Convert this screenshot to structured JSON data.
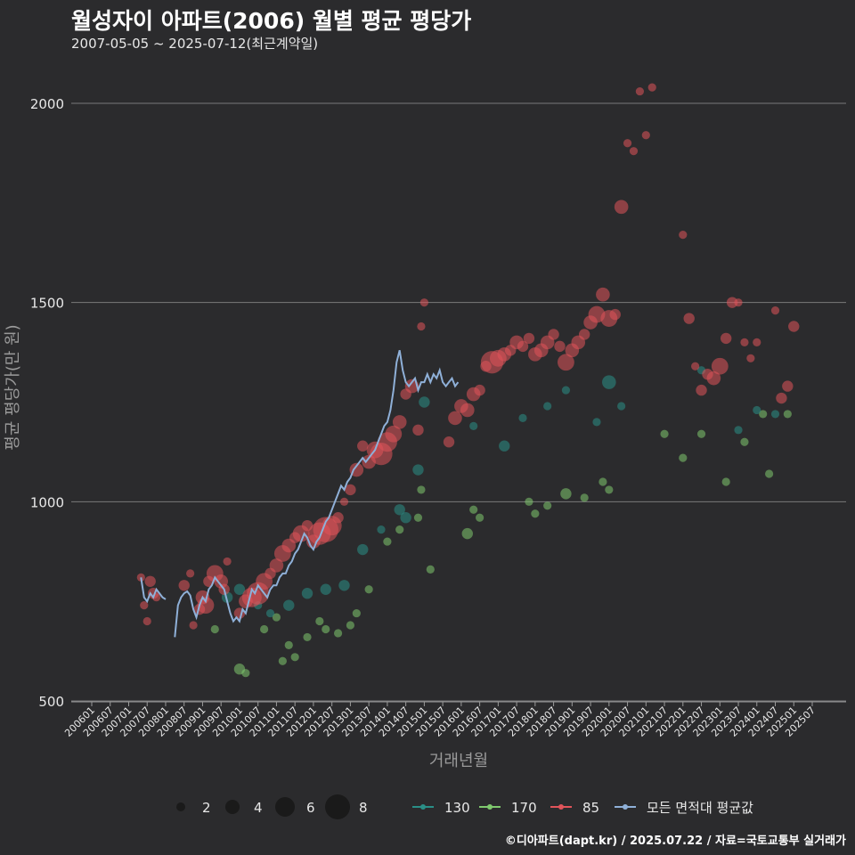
{
  "header": {
    "title": "월성자이 아파트(2006) 월별 평균 평당가",
    "subtitle": "2007-05-05 ~ 2025-07-12(최근계약일)"
  },
  "footer": {
    "credit": "©디아파트(dapt.kr) / 2025.07.22 / 자료=국토교통부 실거래가"
  },
  "colors": {
    "bg": "#2b2b2d",
    "grid": "#7a7a7a",
    "s130": "#2a8f87",
    "s170": "#7fc96e",
    "s85": "#e0545a",
    "avg": "#8fb0d8",
    "text": "#e8e8e8"
  },
  "chart_data": {
    "type": "scatter",
    "xlabel": "거래년월",
    "ylabel": "평균 평당가(만 원)",
    "yticks": [
      500,
      1000,
      1500,
      2000
    ],
    "ylim": [
      500,
      2100
    ],
    "xlim": [
      "2006-01",
      "2025-07"
    ],
    "xticks": [
      "200601",
      "200607",
      "200701",
      "200707",
      "200801",
      "200807",
      "200901",
      "200907",
      "201001",
      "201007",
      "201101",
      "201107",
      "201201",
      "201207",
      "201301",
      "201307",
      "201401",
      "201407",
      "201501",
      "201507",
      "201601",
      "201607",
      "201701",
      "201707",
      "201801",
      "201807",
      "201901",
      "201907",
      "202001",
      "202007",
      "202101",
      "202107",
      "202201",
      "202207",
      "202301",
      "202307",
      "202401",
      "202407",
      "202501",
      "202507"
    ],
    "size_legend": {
      "values": [
        2,
        4,
        6,
        8
      ],
      "labels": [
        "2",
        "4",
        "6",
        "8"
      ]
    },
    "legend": [
      {
        "key": "s130",
        "label": "130"
      },
      {
        "key": "s170",
        "label": "170"
      },
      {
        "key": "s85",
        "label": "85"
      },
      {
        "key": "avg",
        "label": "모든 면적대 평균값"
      }
    ],
    "series_85": [
      [
        "2007-05",
        810,
        1
      ],
      [
        "2007-06",
        740,
        1
      ],
      [
        "2007-07",
        700,
        1
      ],
      [
        "2007-08",
        800,
        2
      ],
      [
        "2007-09",
        770,
        2
      ],
      [
        "2007-10",
        760,
        1
      ],
      [
        "2008-07",
        790,
        2
      ],
      [
        "2008-09",
        820,
        1
      ],
      [
        "2008-10",
        690,
        1
      ],
      [
        "2008-12",
        730,
        2
      ],
      [
        "2009-01",
        760,
        3
      ],
      [
        "2009-02",
        740,
        4
      ],
      [
        "2009-03",
        800,
        2
      ],
      [
        "2009-05",
        820,
        4
      ],
      [
        "2009-07",
        800,
        3
      ],
      [
        "2009-08",
        780,
        2
      ],
      [
        "2009-09",
        850,
        1
      ],
      [
        "2010-01",
        720,
        2
      ],
      [
        "2010-03",
        750,
        3
      ],
      [
        "2010-05",
        760,
        5
      ],
      [
        "2010-07",
        770,
        6
      ],
      [
        "2010-09",
        800,
        4
      ],
      [
        "2010-11",
        820,
        2
      ],
      [
        "2011-01",
        840,
        3
      ],
      [
        "2011-03",
        870,
        4
      ],
      [
        "2011-05",
        890,
        3
      ],
      [
        "2011-07",
        910,
        2
      ],
      [
        "2011-09",
        920,
        4
      ],
      [
        "2011-11",
        940,
        2
      ],
      [
        "2012-01",
        900,
        3
      ],
      [
        "2012-03",
        920,
        6
      ],
      [
        "2012-05",
        930,
        7
      ],
      [
        "2012-07",
        940,
        5
      ],
      [
        "2012-09",
        960,
        2
      ],
      [
        "2012-11",
        1000,
        1
      ],
      [
        "2013-01",
        1030,
        2
      ],
      [
        "2013-03",
        1080,
        3
      ],
      [
        "2013-05",
        1140,
        2
      ],
      [
        "2013-07",
        1100,
        3
      ],
      [
        "2013-09",
        1130,
        4
      ],
      [
        "2013-11",
        1120,
        6
      ],
      [
        "2014-01",
        1150,
        5
      ],
      [
        "2014-03",
        1170,
        4
      ],
      [
        "2014-05",
        1200,
        3
      ],
      [
        "2014-07",
        1270,
        2
      ],
      [
        "2014-09",
        1290,
        3
      ],
      [
        "2014-11",
        1180,
        2
      ],
      [
        "2014-12",
        1440,
        1
      ],
      [
        "2015-01",
        1500,
        1
      ],
      [
        "2015-09",
        1150,
        2
      ],
      [
        "2015-11",
        1210,
        3
      ],
      [
        "2016-01",
        1240,
        3
      ],
      [
        "2016-03",
        1230,
        3
      ],
      [
        "2016-05",
        1270,
        3
      ],
      [
        "2016-07",
        1280,
        2
      ],
      [
        "2016-09",
        1340,
        2
      ],
      [
        "2016-11",
        1350,
        6
      ],
      [
        "2017-01",
        1360,
        4
      ],
      [
        "2017-03",
        1370,
        3
      ],
      [
        "2017-05",
        1380,
        2
      ],
      [
        "2017-07",
        1400,
        3
      ],
      [
        "2017-09",
        1390,
        2
      ],
      [
        "2017-11",
        1410,
        2
      ],
      [
        "2018-01",
        1370,
        3
      ],
      [
        "2018-03",
        1380,
        3
      ],
      [
        "2018-05",
        1400,
        3
      ],
      [
        "2018-07",
        1420,
        2
      ],
      [
        "2018-09",
        1390,
        2
      ],
      [
        "2018-11",
        1350,
        4
      ],
      [
        "2019-01",
        1380,
        3
      ],
      [
        "2019-03",
        1400,
        3
      ],
      [
        "2019-05",
        1420,
        2
      ],
      [
        "2019-07",
        1450,
        3
      ],
      [
        "2019-09",
        1470,
        4
      ],
      [
        "2019-11",
        1520,
        3
      ],
      [
        "2020-01",
        1460,
        4
      ],
      [
        "2020-03",
        1470,
        2
      ],
      [
        "2020-05",
        1740,
        3
      ],
      [
        "2020-07",
        1900,
        1
      ],
      [
        "2020-09",
        1880,
        1
      ],
      [
        "2020-11",
        2030,
        1
      ],
      [
        "2021-01",
        1920,
        1
      ],
      [
        "2021-03",
        2040,
        1
      ],
      [
        "2022-01",
        1670,
        1
      ],
      [
        "2022-03",
        1460,
        2
      ],
      [
        "2022-05",
        1340,
        1
      ],
      [
        "2022-07",
        1280,
        2
      ],
      [
        "2022-09",
        1320,
        2
      ],
      [
        "2022-11",
        1310,
        3
      ],
      [
        "2023-01",
        1340,
        4
      ],
      [
        "2023-03",
        1410,
        2
      ],
      [
        "2023-05",
        1500,
        2
      ],
      [
        "2023-07",
        1500,
        1
      ],
      [
        "2023-09",
        1400,
        1
      ],
      [
        "2023-11",
        1360,
        1
      ],
      [
        "2024-01",
        1400,
        1
      ],
      [
        "2024-07",
        1480,
        1
      ],
      [
        "2024-09",
        1260,
        2
      ],
      [
        "2024-11",
        1290,
        2
      ],
      [
        "2025-01",
        1440,
        2
      ]
    ],
    "series_130": [
      [
        "2009-09",
        760,
        2
      ],
      [
        "2010-01",
        780,
        2
      ],
      [
        "2010-07",
        740,
        1
      ],
      [
        "2010-11",
        720,
        1
      ],
      [
        "2011-05",
        740,
        2
      ],
      [
        "2011-11",
        770,
        2
      ],
      [
        "2012-05",
        780,
        2
      ],
      [
        "2012-11",
        790,
        2
      ],
      [
        "2013-05",
        880,
        2
      ],
      [
        "2013-11",
        930,
        1
      ],
      [
        "2014-05",
        980,
        2
      ],
      [
        "2014-07",
        960,
        2
      ],
      [
        "2014-11",
        1080,
        2
      ],
      [
        "2015-01",
        1250,
        2
      ],
      [
        "2016-05",
        1190,
        1
      ],
      [
        "2017-03",
        1140,
        2
      ],
      [
        "2017-09",
        1210,
        1
      ],
      [
        "2018-05",
        1240,
        1
      ],
      [
        "2018-11",
        1280,
        1
      ],
      [
        "2019-09",
        1200,
        1
      ],
      [
        "2020-01",
        1300,
        3
      ],
      [
        "2020-05",
        1240,
        1
      ],
      [
        "2022-07",
        1330,
        1
      ],
      [
        "2023-07",
        1180,
        1
      ],
      [
        "2024-01",
        1230,
        1
      ],
      [
        "2024-07",
        1220,
        1
      ]
    ],
    "series_170": [
      [
        "2009-05",
        680,
        1
      ],
      [
        "2010-01",
        580,
        2
      ],
      [
        "2010-03",
        570,
        1
      ],
      [
        "2010-09",
        680,
        1
      ],
      [
        "2011-01",
        710,
        1
      ],
      [
        "2011-03",
        600,
        1
      ],
      [
        "2011-05",
        640,
        1
      ],
      [
        "2011-07",
        610,
        1
      ],
      [
        "2011-11",
        660,
        1
      ],
      [
        "2012-03",
        700,
        1
      ],
      [
        "2012-05",
        680,
        1
      ],
      [
        "2012-09",
        670,
        1
      ],
      [
        "2013-01",
        690,
        1
      ],
      [
        "2013-03",
        720,
        1
      ],
      [
        "2013-07",
        780,
        1
      ],
      [
        "2014-01",
        900,
        1
      ],
      [
        "2014-05",
        930,
        1
      ],
      [
        "2014-11",
        960,
        1
      ],
      [
        "2014-12",
        1030,
        1
      ],
      [
        "2015-03",
        830,
        1
      ],
      [
        "2016-03",
        920,
        2
      ],
      [
        "2016-05",
        980,
        1
      ],
      [
        "2016-07",
        960,
        1
      ],
      [
        "2017-11",
        1000,
        1
      ],
      [
        "2018-01",
        970,
        1
      ],
      [
        "2018-05",
        990,
        1
      ],
      [
        "2018-11",
        1020,
        2
      ],
      [
        "2019-05",
        1010,
        1
      ],
      [
        "2019-11",
        1050,
        1
      ],
      [
        "2020-01",
        1030,
        1
      ],
      [
        "2021-07",
        1170,
        1
      ],
      [
        "2022-01",
        1110,
        1
      ],
      [
        "2022-07",
        1170,
        1
      ],
      [
        "2023-03",
        1050,
        1
      ],
      [
        "2023-09",
        1150,
        1
      ],
      [
        "2024-03",
        1220,
        1
      ],
      [
        "2024-11",
        1220,
        1
      ],
      [
        "2024-05",
        1070,
        1
      ]
    ],
    "series_avg": [
      [
        "2007-05",
        810
      ],
      [
        "2007-06",
        760
      ],
      [
        "2007-07",
        750
      ],
      [
        "2007-08",
        770
      ],
      [
        "2007-09",
        760
      ],
      [
        "2007-10",
        780
      ],
      [
        "2007-11",
        770
      ],
      [
        "2007-12",
        760
      ],
      [
        "2008-01",
        755
      ],
      [
        null,
        null
      ],
      [
        "2008-04",
        660
      ],
      [
        "2008-05",
        740
      ],
      [
        "2008-06",
        760
      ],
      [
        "2008-07",
        770
      ],
      [
        "2008-08",
        775
      ],
      [
        "2008-09",
        765
      ],
      [
        "2008-10",
        730
      ],
      [
        "2008-11",
        710
      ],
      [
        "2008-12",
        740
      ],
      [
        "2009-01",
        760
      ],
      [
        "2009-02",
        750
      ],
      [
        "2009-03",
        780
      ],
      [
        "2009-04",
        790
      ],
      [
        "2009-05",
        810
      ],
      [
        "2009-06",
        800
      ],
      [
        "2009-07",
        790
      ],
      [
        "2009-08",
        780
      ],
      [
        "2009-09",
        750
      ],
      [
        "2009-10",
        720
      ],
      [
        "2009-11",
        700
      ],
      [
        "2009-12",
        710
      ],
      [
        "2010-01",
        700
      ],
      [
        "2010-02",
        730
      ],
      [
        "2010-03",
        720
      ],
      [
        "2010-04",
        750
      ],
      [
        "2010-05",
        780
      ],
      [
        "2010-06",
        770
      ],
      [
        "2010-07",
        790
      ],
      [
        "2010-08",
        780
      ],
      [
        "2010-09",
        770
      ],
      [
        "2010-10",
        760
      ],
      [
        "2010-11",
        780
      ],
      [
        "2010-12",
        790
      ],
      [
        "2011-01",
        790
      ],
      [
        "2011-02",
        810
      ],
      [
        "2011-03",
        820
      ],
      [
        "2011-04",
        820
      ],
      [
        "2011-05",
        840
      ],
      [
        "2011-06",
        850
      ],
      [
        "2011-07",
        870
      ],
      [
        "2011-08",
        880
      ],
      [
        "2011-09",
        900
      ],
      [
        "2011-10",
        920
      ],
      [
        "2011-11",
        910
      ],
      [
        "2011-12",
        890
      ],
      [
        "2012-01",
        880
      ],
      [
        "2012-02",
        900
      ],
      [
        "2012-03",
        910
      ],
      [
        "2012-04",
        930
      ],
      [
        "2012-05",
        950
      ],
      [
        "2012-06",
        960
      ],
      [
        "2012-07",
        980
      ],
      [
        "2012-08",
        1000
      ],
      [
        "2012-09",
        1020
      ],
      [
        "2012-10",
        1040
      ],
      [
        "2012-11",
        1030
      ],
      [
        "2012-12",
        1050
      ],
      [
        "2013-01",
        1060
      ],
      [
        "2013-02",
        1080
      ],
      [
        "2013-03",
        1090
      ],
      [
        "2013-04",
        1100
      ],
      [
        "2013-05",
        1110
      ],
      [
        "2013-06",
        1100
      ],
      [
        "2013-07",
        1110
      ],
      [
        "2013-08",
        1120
      ],
      [
        "2013-09",
        1130
      ],
      [
        "2013-10",
        1150
      ],
      [
        "2013-11",
        1170
      ],
      [
        "2013-12",
        1190
      ],
      [
        "2014-01",
        1200
      ],
      [
        "2014-02",
        1230
      ],
      [
        "2014-03",
        1280
      ],
      [
        "2014-04",
        1350
      ],
      [
        "2014-05",
        1380
      ],
      [
        "2014-06",
        1330
      ],
      [
        "2014-07",
        1300
      ],
      [
        "2014-08",
        1290
      ],
      [
        "2014-09",
        1300
      ],
      [
        "2014-10",
        1310
      ],
      [
        "2014-11",
        1280
      ],
      [
        "2014-12",
        1300
      ]
    ],
    "series_avg_late": [
      [
        "2015-01",
        1300
      ],
      [
        "2015-02",
        1320
      ],
      [
        "2015-03",
        1300
      ],
      [
        "2015-04",
        1320
      ],
      [
        "2015-05",
        1310
      ],
      [
        "2015-06",
        1330
      ],
      [
        "2015-07",
        1300
      ],
      [
        "2015-08",
        1290
      ],
      [
        "2015-09",
        1300
      ],
      [
        "2015-10",
        1310
      ],
      [
        "2015-11",
        1290
      ],
      [
        "2015-12",
        1300
      ]
    ]
  }
}
